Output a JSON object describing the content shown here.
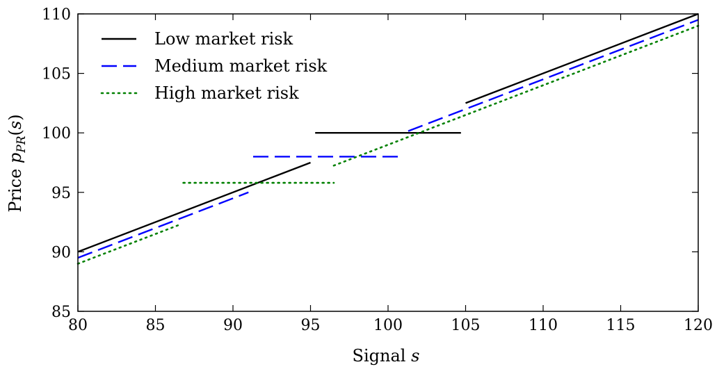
{
  "chart_data": {
    "type": "line",
    "title": "",
    "xlabel": "Signal s",
    "ylabel": "Price p_PR(s)",
    "xlim": [
      80,
      120
    ],
    "ylim": [
      85,
      110
    ],
    "xticks": [
      80,
      85,
      90,
      95,
      100,
      105,
      110,
      115,
      120
    ],
    "yticks": [
      85,
      90,
      95,
      100,
      105,
      110
    ],
    "grid": false,
    "legend_position": "top-left",
    "series": [
      {
        "name": "Low market risk",
        "color": "#000000",
        "style": "solid",
        "segments": [
          {
            "x": [
              80,
              95
            ],
            "y": [
              90,
              97.5
            ]
          },
          {
            "x": [
              95.3,
              104.7
            ],
            "y": [
              100,
              100
            ]
          },
          {
            "x": [
              105,
              120
            ],
            "y": [
              102.5,
              110
            ]
          }
        ]
      },
      {
        "name": "Medium market risk",
        "color": "#0000ff",
        "style": "dashed",
        "segments": [
          {
            "x": [
              80,
              91
            ],
            "y": [
              89.5,
              95
            ]
          },
          {
            "x": [
              91.3,
              101
            ],
            "y": [
              98,
              98
            ]
          },
          {
            "x": [
              101.3,
              120
            ],
            "y": [
              100.15,
              109.5
            ]
          }
        ]
      },
      {
        "name": "High market risk",
        "color": "#008000",
        "style": "dotted",
        "segments": [
          {
            "x": [
              80,
              86.5
            ],
            "y": [
              89,
              92.25
            ]
          },
          {
            "x": [
              86.8,
              96.5
            ],
            "y": [
              95.8,
              95.8
            ]
          },
          {
            "x": [
              96.5,
              120
            ],
            "y": [
              97.25,
              109
            ]
          }
        ]
      }
    ]
  }
}
